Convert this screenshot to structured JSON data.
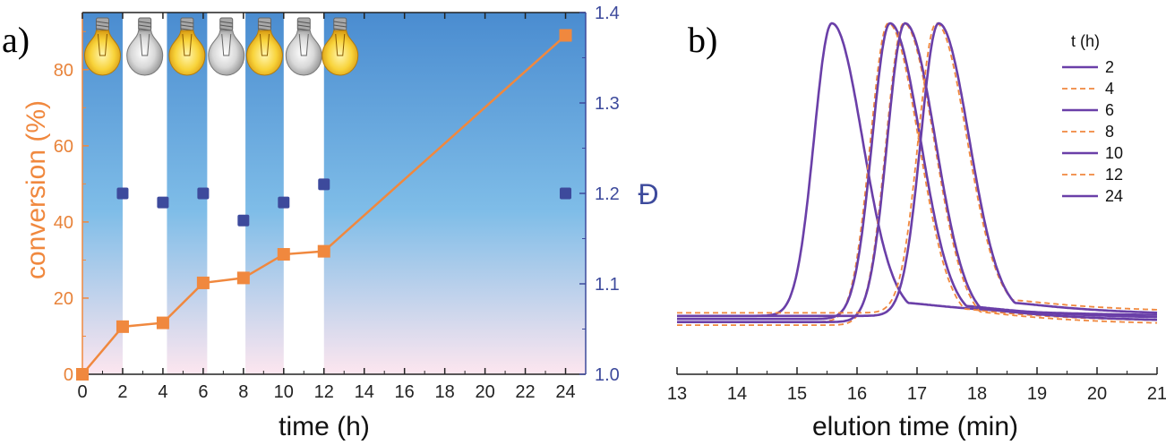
{
  "colors": {
    "orange": "#f0883e",
    "blue": "#3d4a9c",
    "purple": "#6a3fa8",
    "light_on_top": "#4a8fd0",
    "light_on_bottom": "#fbe4ef"
  },
  "panel_a": {
    "label": "a)",
    "xlabel": "time (h)",
    "ylabel_left": "conversion (%)",
    "ylabel_right": "Đ",
    "icons": [
      "bulb-on-icon",
      "bulb-off-icon",
      "bulb-on-icon",
      "bulb-off-icon",
      "bulb-on-icon",
      "bulb-off-icon",
      "bulb-on-icon"
    ]
  },
  "panel_b": {
    "label": "b)",
    "xlabel": "elution time (min)",
    "legend_title": "t (h)"
  },
  "chart_data": [
    {
      "type": "line",
      "panel": "a",
      "xlim": [
        0,
        25
      ],
      "ylim": [
        0,
        95
      ],
      "ylim_right": [
        1.0,
        1.4
      ],
      "xticks": [
        "0",
        "2",
        "4",
        "6",
        "8",
        "10",
        "12",
        "14",
        "16",
        "18",
        "20",
        "22",
        "24"
      ],
      "yticks_left": [
        "0",
        "20",
        "40",
        "60",
        "80"
      ],
      "yticks_right": [
        "1.0",
        "1.1",
        "1.2",
        "1.3",
        "1.4"
      ],
      "light_on_intervals": [
        [
          0,
          2
        ],
        [
          4.2,
          6.2
        ],
        [
          8.1,
          10
        ],
        [
          12,
          25
        ]
      ],
      "series": [
        {
          "axis": "left",
          "x": [
            0,
            2,
            4,
            6,
            8,
            10,
            12,
            24
          ],
          "y": [
            0,
            12.5,
            13.5,
            24,
            25.3,
            31.5,
            32.3,
            89
          ]
        },
        {
          "axis": "right",
          "x": [
            2,
            4,
            6,
            8,
            10,
            12,
            24
          ],
          "y": [
            1.2,
            1.19,
            1.2,
            1.17,
            1.19,
            1.21,
            1.2
          ]
        }
      ]
    },
    {
      "type": "line",
      "panel": "b",
      "xlim": [
        13,
        21
      ],
      "xticks": [
        "13",
        "14",
        "15",
        "16",
        "17",
        "18",
        "19",
        "20",
        "21"
      ],
      "series": [
        {
          "name": "2",
          "style": "solid",
          "peak": 15.58,
          "base": 0.05
        },
        {
          "name": "4",
          "style": "dashed",
          "peak": 16.52,
          "base": 0.03
        },
        {
          "name": "6",
          "style": "solid",
          "peak": 16.55,
          "base": 0.04
        },
        {
          "name": "8",
          "style": "dashed",
          "peak": 16.78,
          "base": 0.02
        },
        {
          "name": "10",
          "style": "solid",
          "peak": 16.8,
          "base": 0.03
        },
        {
          "name": "12",
          "style": "dashed",
          "peak": 17.32,
          "base": 0.06
        },
        {
          "name": "24",
          "style": "solid",
          "peak": 17.36,
          "base": 0.05
        }
      ]
    }
  ]
}
